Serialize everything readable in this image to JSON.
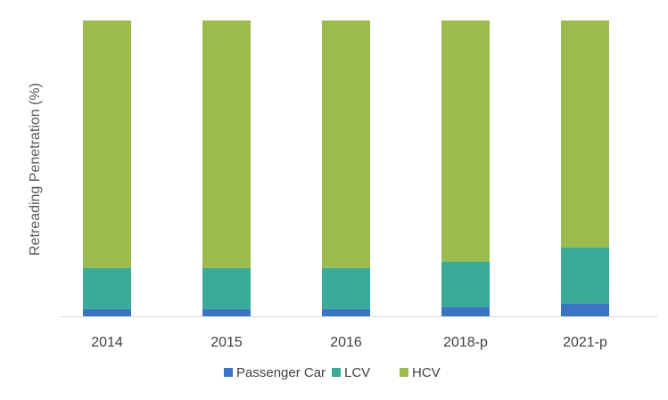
{
  "chart_data": {
    "type": "bar",
    "stacked": true,
    "normalized": true,
    "categories": [
      "2014",
      "2015",
      "2016",
      "2018-p",
      "2021-p"
    ],
    "series": [
      {
        "name": "Passenger Car",
        "color": "#3a75c4",
        "values": [
          2.5,
          2.5,
          2.5,
          3.2,
          4.3
        ]
      },
      {
        "name": "LCV",
        "color": "#3aab96",
        "values": [
          13.8,
          13.8,
          13.8,
          15.3,
          19.0
        ]
      },
      {
        "name": "HCV",
        "color": "#9bbb4f",
        "values": [
          83.7,
          83.7,
          83.7,
          81.5,
          76.7
        ]
      }
    ],
    "ylabel": "Retreading Penetration (%)",
    "xlabel": "",
    "ylim": [
      0,
      100
    ],
    "grid": false,
    "legend_position": "bottom"
  }
}
